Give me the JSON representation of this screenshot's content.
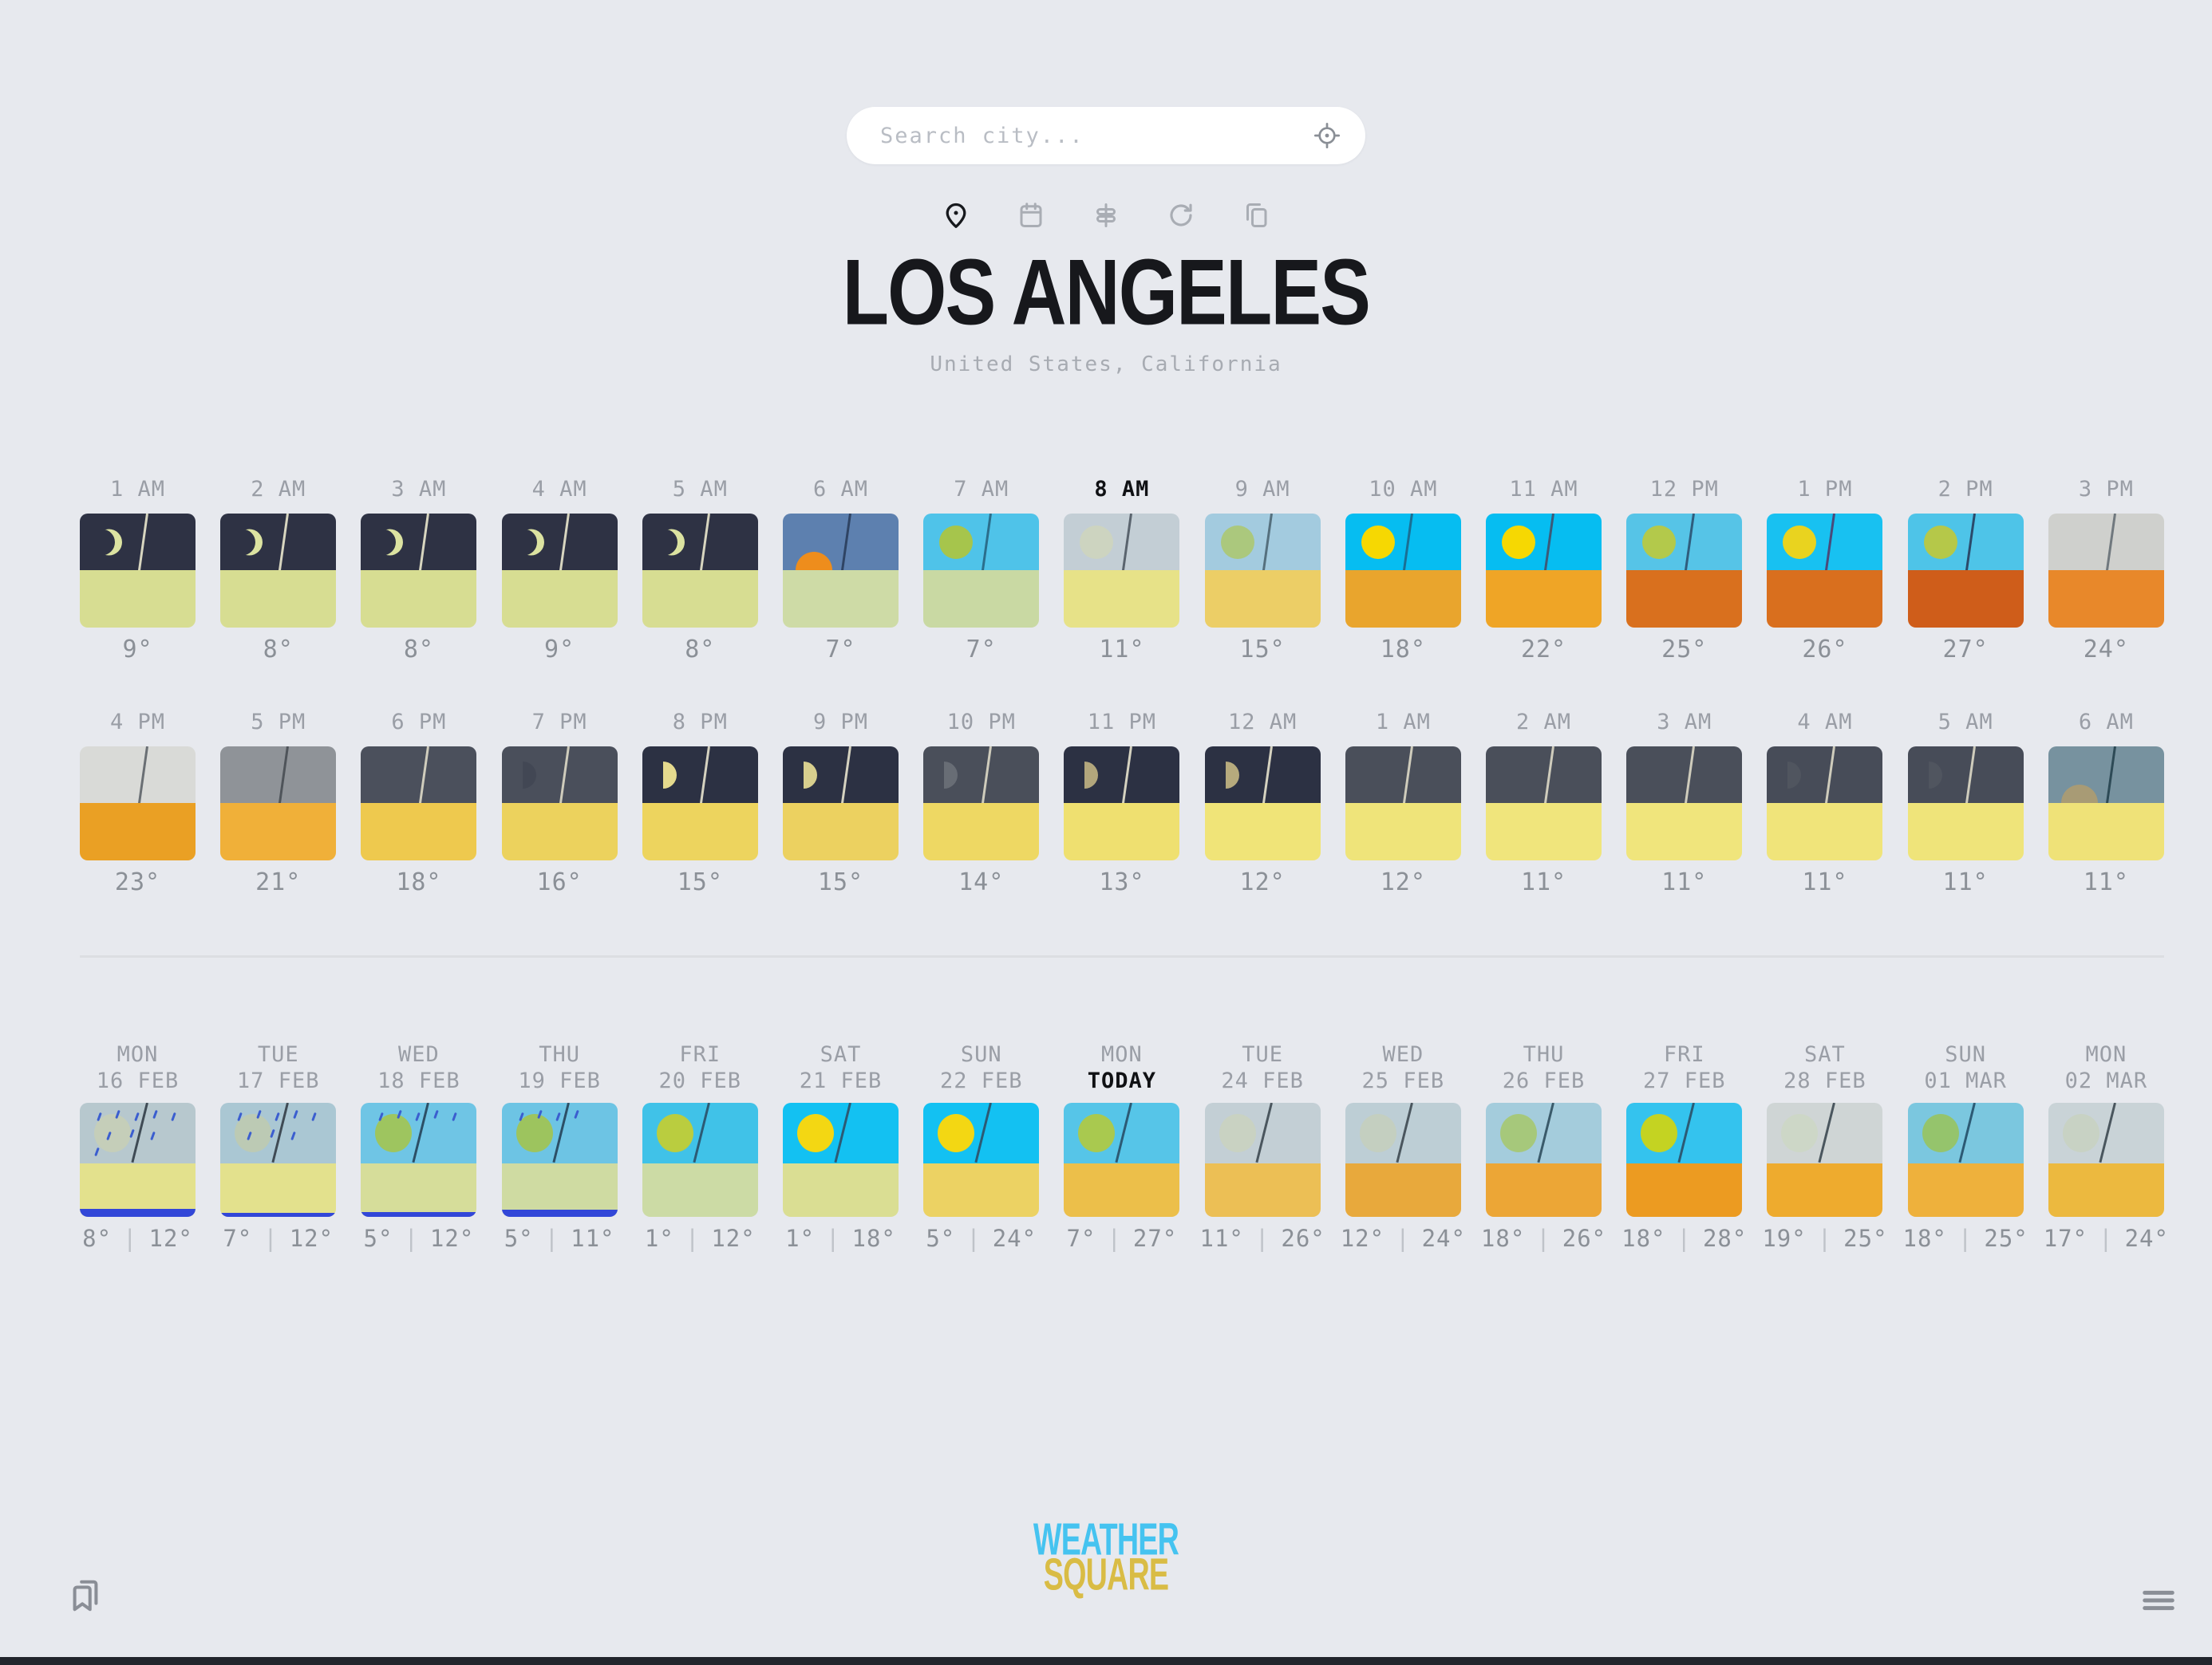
{
  "page": {
    "bg": "#e7e9ee",
    "divider_color": "#dcdee2",
    "bottom_bar_color": "#22252c"
  },
  "search": {
    "placeholder": "Search city...",
    "locate_icon": "locate-fixed-icon"
  },
  "toolbar": {
    "active_color": "#17191d",
    "inactive_color": "#a9adb4",
    "items": [
      {
        "icon": "location-pin-icon",
        "active": true
      },
      {
        "icon": "calendar-icon",
        "active": false
      },
      {
        "icon": "signpost-icon",
        "active": false
      },
      {
        "icon": "refresh-icon",
        "active": false
      },
      {
        "icon": "copy-icon",
        "active": false
      }
    ]
  },
  "location": {
    "city": "LOS ANGELES",
    "subtitle": "United States, California"
  },
  "hourly": {
    "row1": [
      {
        "label": "1 AM",
        "temp": "9°",
        "sky": "#2e3244",
        "ground": "#d7dd92",
        "cel": "crescent",
        "cel_color": "#dce3a1",
        "line": "#d8d6c0",
        "current": false
      },
      {
        "label": "2 AM",
        "temp": "8°",
        "sky": "#2e3244",
        "ground": "#d7dd92",
        "cel": "crescent",
        "cel_color": "#dce3a1",
        "line": "#d8d6c0",
        "current": false
      },
      {
        "label": "3 AM",
        "temp": "8°",
        "sky": "#2e3244",
        "ground": "#d7dd92",
        "cel": "crescent",
        "cel_color": "#dce3a1",
        "line": "#d8d6c0",
        "current": false
      },
      {
        "label": "4 AM",
        "temp": "9°",
        "sky": "#2e3244",
        "ground": "#d7dd92",
        "cel": "crescent",
        "cel_color": "#dce3a1",
        "line": "#d8d6c0",
        "current": false
      },
      {
        "label": "5 AM",
        "temp": "8°",
        "sky": "#2e3244",
        "ground": "#d7dd92",
        "cel": "crescent",
        "cel_color": "#dce3a1",
        "line": "#d8d6c0",
        "current": false
      },
      {
        "label": "6 AM",
        "temp": "7°",
        "sky": "#5d80af",
        "ground": "#cedba6",
        "cel": "rise",
        "cel_color": "#ee8d1c",
        "line": "#2f4464",
        "current": false
      },
      {
        "label": "7 AM",
        "temp": "7°",
        "sky": "#4fc3e9",
        "ground": "#c9d9a3",
        "cel": "sun",
        "cel_color": "#a6c54c",
        "line": "#2b6e8c",
        "current": false
      },
      {
        "label": "8 AM",
        "temp": "11°",
        "sky": "#c3ced5",
        "ground": "#e7e288",
        "cel": "sun",
        "cel_color": "#cdd4c0",
        "line": "#5a646e",
        "current": true
      },
      {
        "label": "9 AM",
        "temp": "15°",
        "sky": "#a3cbdf",
        "ground": "#ecce66",
        "cel": "sun",
        "cel_color": "#abc87d",
        "line": "#55707e",
        "current": false
      },
      {
        "label": "10 AM",
        "temp": "18°",
        "sky": "#06bdf1",
        "ground": "#e9a52d",
        "cel": "sun",
        "cel_color": "#f6d802",
        "line": "#1a6f94",
        "current": false
      },
      {
        "label": "11 AM",
        "temp": "22°",
        "sky": "#06bdf1",
        "ground": "#efa526",
        "cel": "sun",
        "cel_color": "#f6d802",
        "line": "#3c5a78",
        "current": false
      },
      {
        "label": "12 PM",
        "temp": "25°",
        "sky": "#56c4e7",
        "ground": "#d9701e",
        "cel": "sun",
        "cel_color": "#b3c94b",
        "line": "#2f5d7d",
        "current": false
      },
      {
        "label": "1 PM",
        "temp": "26°",
        "sky": "#18c1f1",
        "ground": "#d96f1e",
        "cel": "sun",
        "cel_color": "#e9d31f",
        "line": "#4a4a7a",
        "current": false
      },
      {
        "label": "2 PM",
        "temp": "27°",
        "sky": "#4ec4e8",
        "ground": "#cf5d1a",
        "cel": "sun",
        "cel_color": "#b5c849",
        "line": "#2b4a6a",
        "current": false
      },
      {
        "label": "3 PM",
        "temp": "24°",
        "sky": "#cfd0cd",
        "ground": "#e8882a",
        "cel": "none",
        "cel_color": "",
        "line": "#70787e",
        "current": false
      }
    ],
    "row2": [
      {
        "label": "4 PM",
        "temp": "23°",
        "sky": "#d9dad7",
        "ground": "#eaa024",
        "cel": "none",
        "cel_color": "",
        "line": "#6a6f74",
        "current": false
      },
      {
        "label": "5 PM",
        "temp": "21°",
        "sky": "#8f9398",
        "ground": "#f0b039",
        "cel": "none",
        "cel_color": "",
        "line": "#4f545a",
        "current": false
      },
      {
        "label": "6 PM",
        "temp": "18°",
        "sky": "#4b505c",
        "ground": "#eec94e",
        "cel": "none",
        "cel_color": "",
        "line": "#d0cdbd",
        "current": false
      },
      {
        "label": "7 PM",
        "temp": "16°",
        "sky": "#4a4f5b",
        "ground": "#ecd25d",
        "cel": "half",
        "cel_color": "#424754",
        "line": "#cfccbc",
        "current": false
      },
      {
        "label": "8 PM",
        "temp": "15°",
        "sky": "#2c3143",
        "ground": "#edd45e",
        "cel": "half",
        "cel_color": "#e5da8e",
        "line": "#d5d2c0",
        "current": false
      },
      {
        "label": "9 PM",
        "temp": "15°",
        "sky": "#2c3143",
        "ground": "#ecd160",
        "cel": "half",
        "cel_color": "#d8cf8e",
        "line": "#d5d2c0",
        "current": false
      },
      {
        "label": "10 PM",
        "temp": "14°",
        "sky": "#4a4f5a",
        "ground": "#eed863",
        "cel": "half",
        "cel_color": "#686d75",
        "line": "#cfccbc",
        "current": false
      },
      {
        "label": "11 PM",
        "temp": "13°",
        "sky": "#2c3143",
        "ground": "#efe070",
        "cel": "half",
        "cel_color": "#b2a67c",
        "line": "#d5d2c0",
        "current": false
      },
      {
        "label": "12 AM",
        "temp": "12°",
        "sky": "#2c3143",
        "ground": "#f0e478",
        "cel": "half",
        "cel_color": "#b6aa7d",
        "line": "#d5d2c0",
        "current": false
      },
      {
        "label": "1 AM",
        "temp": "12°",
        "sky": "#4a4f5a",
        "ground": "#efe47a",
        "cel": "none",
        "cel_color": "",
        "line": "#cfccbc",
        "current": false
      },
      {
        "label": "2 AM",
        "temp": "11°",
        "sky": "#4a4f5a",
        "ground": "#f0e57c",
        "cel": "none",
        "cel_color": "",
        "line": "#cfccbc",
        "current": false
      },
      {
        "label": "3 AM",
        "temp": "11°",
        "sky": "#4a4f5a",
        "ground": "#f0e57c",
        "cel": "none",
        "cel_color": "",
        "line": "#cfccbc",
        "current": false
      },
      {
        "label": "4 AM",
        "temp": "11°",
        "sky": "#474c58",
        "ground": "#f0e47a",
        "cel": "half",
        "cel_color": "#50555f",
        "line": "#cfccbc",
        "current": false
      },
      {
        "label": "5 AM",
        "temp": "11°",
        "sky": "#474c58",
        "ground": "#efe47a",
        "cel": "half",
        "cel_color": "#50555f",
        "line": "#cfccbc",
        "current": false
      },
      {
        "label": "6 AM",
        "temp": "11°",
        "sky": "#77929f",
        "ground": "#efe278",
        "cel": "rise",
        "cel_color": "#a89b75",
        "line": "#2d4a56",
        "current": false
      }
    ]
  },
  "daily_style": {
    "tick_color": "#3b5ecf",
    "precip_color": "#3247d8",
    "separator": "|"
  },
  "daily": [
    {
      "day": "MON",
      "date": "16 FEB",
      "today": false,
      "low": "8°",
      "high": "12°",
      "sky": "#b7c8ce",
      "ground": "#e3e18d",
      "cel": "sun",
      "cel_color": "#c5ceb9",
      "line": "#3f4b55",
      "rain_ticks": 9,
      "precip": 10
    },
    {
      "day": "TUE",
      "date": "17 FEB",
      "today": false,
      "low": "7°",
      "high": "12°",
      "sky": "#aac7d3",
      "ground": "#e3e18d",
      "cel": "sun",
      "cel_color": "#bccab4",
      "line": "#3f4b55",
      "rain_ticks": 8,
      "precip": 5
    },
    {
      "day": "WED",
      "date": "18 FEB",
      "today": false,
      "low": "5°",
      "high": "12°",
      "sky": "#6fc5e5",
      "ground": "#d6dd9a",
      "cel": "sun",
      "cel_color": "#9ec55f",
      "line": "#2c4f66",
      "rain_ticks": 5,
      "precip": 6
    },
    {
      "day": "THU",
      "date": "19 FEB",
      "today": false,
      "low": "5°",
      "high": "11°",
      "sky": "#6dc4e4",
      "ground": "#cfdba2",
      "cel": "sun",
      "cel_color": "#9dc45e",
      "line": "#2c4f66",
      "rain_ticks": 4,
      "precip": 9
    },
    {
      "day": "FRI",
      "date": "20 FEB",
      "today": false,
      "low": "1°",
      "high": "12°",
      "sky": "#40c2e8",
      "ground": "#ccdba5",
      "cel": "sun",
      "cel_color": "#bacd3f",
      "line": "#2c5a74",
      "rain_ticks": 0,
      "precip": 0
    },
    {
      "day": "SAT",
      "date": "21 FEB",
      "today": false,
      "low": "1°",
      "high": "18°",
      "sky": "#13c1f2",
      "ground": "#dade93",
      "cel": "sun",
      "cel_color": "#f3d713",
      "line": "#2c5a74",
      "rain_ticks": 0,
      "precip": 0
    },
    {
      "day": "SUN",
      "date": "22 FEB",
      "today": false,
      "low": "5°",
      "high": "24°",
      "sky": "#13c1f2",
      "ground": "#ecd263",
      "cel": "sun",
      "cel_color": "#f3d713",
      "line": "#2c5a74",
      "rain_ticks": 0,
      "precip": 0
    },
    {
      "day": "MON",
      "date": "TODAY",
      "today": true,
      "low": "7°",
      "high": "27°",
      "sky": "#56c5e8",
      "ground": "#ecbf4a",
      "cel": "sun",
      "cel_color": "#a9c94f",
      "line": "#2c5a74",
      "rain_ticks": 0,
      "precip": 0
    },
    {
      "day": "TUE",
      "date": "24 FEB",
      "today": false,
      "low": "11°",
      "high": "26°",
      "sky": "#c3cfd5",
      "ground": "#ecbf55",
      "cel": "sun",
      "cel_color": "#c9d2c2",
      "line": "#4a565e",
      "rain_ticks": 0,
      "precip": 0
    },
    {
      "day": "WED",
      "date": "25 FEB",
      "today": false,
      "low": "12°",
      "high": "24°",
      "sky": "#bdced5",
      "ground": "#e8a93c",
      "cel": "sun",
      "cel_color": "#c4cfc0",
      "line": "#4a565e",
      "rain_ticks": 0,
      "precip": 0
    },
    {
      "day": "THU",
      "date": "26 FEB",
      "today": false,
      "low": "18°",
      "high": "26°",
      "sky": "#a4ccdc",
      "ground": "#eca636",
      "cel": "sun",
      "cel_color": "#a6c87b",
      "line": "#3a5a6a",
      "rain_ticks": 0,
      "precip": 0
    },
    {
      "day": "FRI",
      "date": "27 FEB",
      "today": false,
      "low": "18°",
      "high": "28°",
      "sky": "#34c3ee",
      "ground": "#ec9b21",
      "cel": "sun",
      "cel_color": "#c4d322",
      "line": "#2c5a74",
      "rain_ticks": 0,
      "precip": 0
    },
    {
      "day": "SAT",
      "date": "28 FEB",
      "today": false,
      "low": "19°",
      "high": "25°",
      "sky": "#cfd5d5",
      "ground": "#eeab2e",
      "cel": "sun",
      "cel_color": "#cdd7c7",
      "line": "#4a565e",
      "rain_ticks": 0,
      "precip": 0
    },
    {
      "day": "SUN",
      "date": "01 MAR",
      "today": false,
      "low": "18°",
      "high": "25°",
      "sky": "#7bc7df",
      "ground": "#eeb13c",
      "cel": "sun",
      "cel_color": "#95c46c",
      "line": "#2c5a74",
      "rain_ticks": 0,
      "precip": 0
    },
    {
      "day": "MON",
      "date": "02 MAR",
      "today": false,
      "low": "17°",
      "high": "24°",
      "sky": "#c9d3d7",
      "ground": "#ecb93f",
      "cel": "sun",
      "cel_color": "#c8d2c4",
      "line": "#4a565e",
      "rain_ticks": 0,
      "precip": 0
    }
  ],
  "footer": {
    "logo_line1": "WEATHER",
    "logo_line2": "SQUARE",
    "logo_color1": "#45c3f0",
    "logo_color2": "#d9bc45",
    "left_icon": "bookmarks-icon",
    "right_icon": "menu-icon"
  }
}
